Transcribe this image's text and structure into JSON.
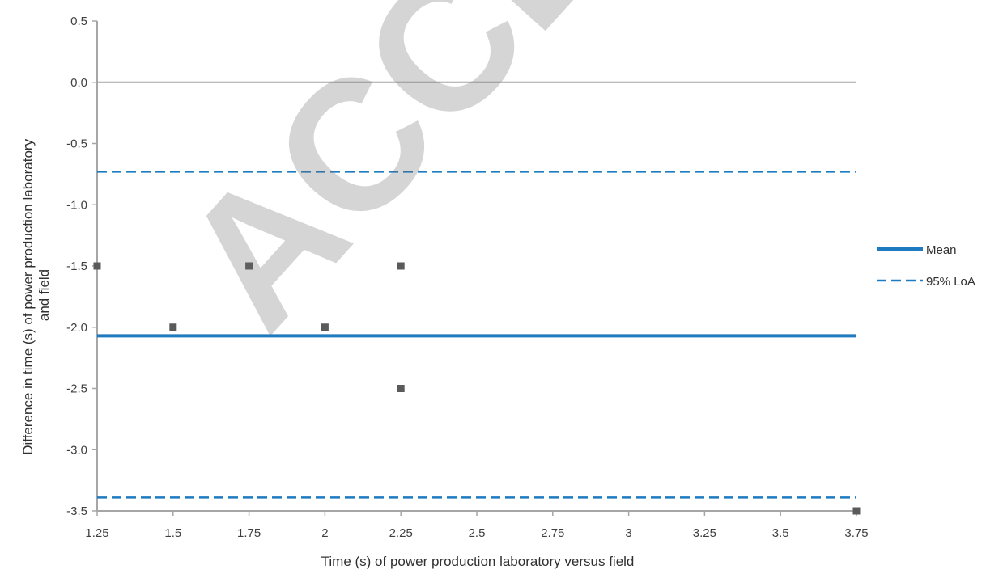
{
  "chart_data": {
    "type": "scatter",
    "xlabel": "Time (s) of power production laboratory versus field",
    "ylabel_lines": [
      "Difference in time (s)  of power production laboratory",
      "and field"
    ],
    "x_ticks": [
      "1.25",
      "1.5",
      "1.75",
      "2",
      "2.25",
      "2.5",
      "2.75",
      "3",
      "3.25",
      "3.5",
      "3.75"
    ],
    "y_ticks": [
      "0.5",
      "0.0",
      "-0.5",
      "-1.0",
      "-1.5",
      "-2.0",
      "-2.5",
      "-3.0",
      "-3.5"
    ],
    "xlim": [
      1.25,
      3.75
    ],
    "ylim": [
      -3.5,
      0.5
    ],
    "points": [
      {
        "x": 1.25,
        "y": -1.5
      },
      {
        "x": 1.5,
        "y": -2.0
      },
      {
        "x": 1.75,
        "y": -1.5
      },
      {
        "x": 2.0,
        "y": -2.0
      },
      {
        "x": 2.25,
        "y": -1.5
      },
      {
        "x": 2.25,
        "y": -2.5
      },
      {
        "x": 3.75,
        "y": -3.5
      }
    ],
    "zero_line": 0.0,
    "mean": -2.07,
    "loa_upper": -0.73,
    "loa_lower": -3.39,
    "legend": {
      "position": "right",
      "items": [
        {
          "label": "Mean",
          "style": "solid"
        },
        {
          "label": "95% LoA",
          "style": "dashed"
        }
      ]
    },
    "colors": {
      "mean": "#1f7bc0",
      "loa": "#1f7bc0",
      "points": "#5a5a5a",
      "axis": "#a6a6a6",
      "zero_line": "#a6a6a6"
    }
  },
  "watermark": "ACCEPTED"
}
